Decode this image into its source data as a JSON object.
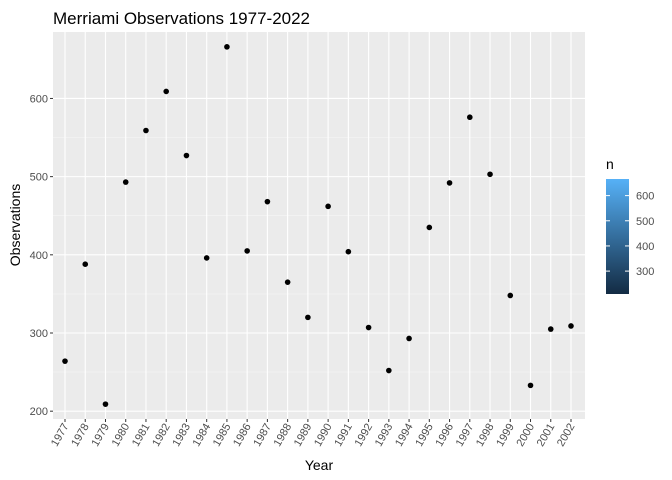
{
  "chart_data": {
    "type": "scatter",
    "title": "Merriami Observations 1977-2022",
    "xlabel": "Year",
    "ylabel": "Observations",
    "x": [
      "1977",
      "1978",
      "1979",
      "1980",
      "1981",
      "1982",
      "1983",
      "1984",
      "1985",
      "1986",
      "1987",
      "1988",
      "1989",
      "1990",
      "1991",
      "1992",
      "1993",
      "1994",
      "1995",
      "1996",
      "1997",
      "1998",
      "1999",
      "2000",
      "2001",
      "2002"
    ],
    "y": [
      264,
      388,
      209,
      493,
      559,
      609,
      527,
      396,
      666,
      405,
      468,
      365,
      320,
      462,
      404,
      307,
      252,
      293,
      435,
      492,
      576,
      503,
      348,
      233,
      305,
      309
    ],
    "ylim": [
      190,
      685
    ],
    "yticks": [
      200,
      300,
      400,
      500,
      600
    ],
    "grid": true,
    "point_color": "#000000",
    "panel_background": "#ebebeb",
    "legend": {
      "title": "n",
      "placement": "right",
      "ticks": [
        300,
        400,
        500,
        600
      ],
      "range": [
        209,
        666
      ],
      "color_low": "#132b43",
      "color_high": "#56b1f7"
    }
  }
}
